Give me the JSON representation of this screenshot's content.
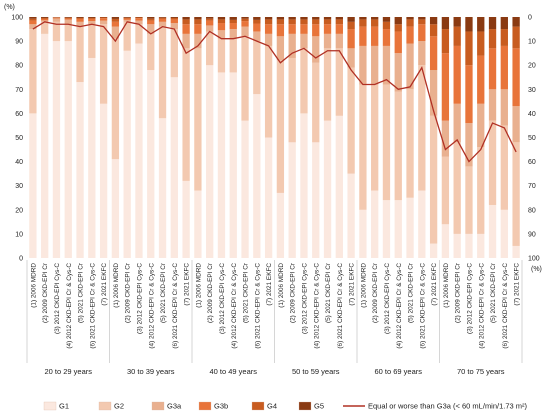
{
  "chart_data": {
    "type": "bar",
    "stacked": true,
    "left_axis_unit": "(%)",
    "right_axis_unit": "(%)",
    "left_ticks": [
      "0",
      "10",
      "20",
      "30",
      "40",
      "50",
      "60",
      "70",
      "80",
      "90",
      "100"
    ],
    "right_ticks": [
      "0",
      "10",
      "20",
      "30",
      "40",
      "50",
      "60",
      "70",
      "80",
      "90",
      "100"
    ],
    "ylim": [
      0,
      100
    ],
    "right_axis_reversed": true,
    "methods": [
      "(1) 2006 MDRD",
      "(2) 2009 CKD-EPI Cr",
      "(3) 2012 CKD-EPI Cys-C",
      "(4) 2012 CKD-EPI Cr & Cys-C",
      "(5) 2021 CKD-EPI Cr",
      "(6) 2021 CKD-EPI Cr & Cys-C",
      "(7) 2021 EKFC"
    ],
    "groups": [
      "20 to 29 years",
      "30 to 39 years",
      "40 to 49 years",
      "50 to 59 years",
      "60 to 69 years",
      "70 to 75 years"
    ],
    "colors": {
      "G1": "#fbe8df",
      "G2": "#f3c9b0",
      "G3a": "#e9b08f",
      "G3b": "#e8743a",
      "G4": "#c85c20",
      "G5": "#8a3a12",
      "line": "#b03024"
    },
    "legend": [
      {
        "key": "G1",
        "label": "G1"
      },
      {
        "key": "G2",
        "label": "G2"
      },
      {
        "key": "G3a",
        "label": "G3a"
      },
      {
        "key": "G3b",
        "label": "G3b"
      },
      {
        "key": "G4",
        "label": "G4"
      },
      {
        "key": "G5",
        "label": "G5"
      },
      {
        "key": "line",
        "label": "Equal or worse than G3a (< 60 mL/min/1.73 m²)"
      }
    ],
    "series": [
      {
        "name": "G1",
        "values": [
          60,
          93,
          90,
          90,
          73,
          83,
          64,
          41,
          86,
          89,
          78,
          58,
          75,
          32,
          28,
          80,
          77,
          77,
          57,
          68,
          50,
          27,
          48,
          60,
          48,
          57,
          59,
          35,
          20,
          28,
          24,
          24,
          25,
          28,
          6,
          14,
          10,
          10,
          10,
          22,
          20,
          5
        ]
      },
      {
        "name": "G2",
        "values": [
          35,
          5,
          8,
          7,
          23,
          14,
          33,
          50,
          12,
          8,
          15,
          38,
          20,
          55,
          59,
          14,
          14,
          14,
          35,
          22,
          38,
          55,
          35,
          27,
          33,
          30,
          28,
          44,
          52,
          44,
          48,
          45,
          45,
          52,
          53,
          28,
          38,
          28,
          36,
          35,
          35,
          43
        ]
      },
      {
        "name": "G3a",
        "values": [
          2,
          0.6,
          1.4,
          1.9,
          2,
          1.3,
          1.5,
          5,
          0.8,
          1.5,
          4,
          2,
          2.5,
          6,
          6,
          2.5,
          3.5,
          4,
          4,
          4,
          5,
          10,
          10,
          6,
          11,
          6,
          6,
          8,
          16,
          16,
          16,
          16,
          19,
          10,
          19,
          15,
          16,
          18,
          18,
          13,
          15,
          15
        ]
      },
      {
        "name": "G3b",
        "values": [
          1.5,
          0.6,
          0.3,
          0.5,
          1.2,
          0.9,
          1,
          2,
          0.6,
          1,
          1.5,
          1.2,
          1.5,
          4,
          4,
          2,
          3,
          2.5,
          2.3,
          3.3,
          4,
          5,
          4,
          4,
          5,
          4,
          4,
          8,
          8,
          8,
          7,
          9,
          7,
          7,
          14,
          28,
          24,
          24,
          20,
          17,
          18,
          24
        ]
      },
      {
        "name": "G4",
        "values": [
          0.8,
          0.4,
          0.2,
          0.3,
          0.4,
          0.4,
          0.3,
          1.2,
          0.3,
          0.3,
          0.8,
          0.5,
          0.6,
          2,
          2,
          0.8,
          1.5,
          1.3,
          1,
          1.5,
          2,
          2,
          2,
          2,
          2,
          2,
          2,
          3,
          3,
          3,
          3,
          3,
          3,
          2,
          5,
          10,
          8,
          14,
          10,
          8,
          7,
          9
        ]
      },
      {
        "name": "G5",
        "values": [
          0.7,
          0.4,
          0.1,
          0.3,
          0.4,
          0.4,
          0.2,
          0.8,
          0.3,
          0.2,
          0.7,
          0.3,
          0.4,
          1,
          1,
          0.7,
          1,
          1.2,
          0.7,
          1.2,
          1,
          1,
          1,
          1,
          1,
          1,
          1,
          2,
          1,
          1,
          2,
          3,
          1,
          1,
          3,
          5,
          4,
          6,
          6,
          5,
          5,
          4
        ]
      }
    ],
    "line_values": [
      5,
      2,
      3,
      3,
      4,
      3,
      4,
      10,
      2,
      3,
      7,
      4,
      5,
      15,
      12,
      6,
      9,
      9,
      8,
      10,
      12,
      19,
      15,
      13,
      17,
      14,
      14,
      22,
      28,
      28,
      26,
      30,
      29,
      21,
      39,
      55,
      51,
      60,
      55,
      44,
      46,
      56
    ]
  }
}
